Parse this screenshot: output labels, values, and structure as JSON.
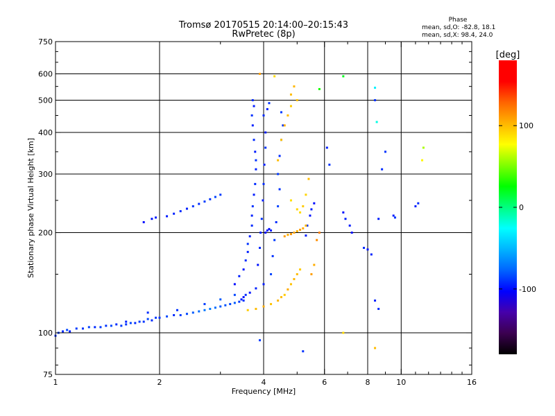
{
  "header": {
    "title_line1": "Tromsø 20170515 20:14:00–20:15:43",
    "title_line2": "RwPretec (8p)",
    "phase_title": "Phase",
    "phase_line_o": "mean, sd,O:  -82.8,  18.1",
    "phase_line_x": "mean, sd,X:  98.4,  24.0"
  },
  "chart_data": {
    "type": "scatter",
    "title": "Tromsø 20170515 20:14:00–20:15:43",
    "subtitle": "RwPretec (8p)",
    "xlabel": "Frequency [MHz]",
    "ylabel": "Stationary phase Virtual Height [km]",
    "xscale": "log",
    "yscale": "log",
    "xlim": [
      1,
      16
    ],
    "ylim": [
      75,
      750
    ],
    "x_ticks": [
      1,
      2,
      4,
      6,
      8,
      10,
      16
    ],
    "x_tick_labels": [
      "1",
      "2",
      "4",
      "6",
      "8",
      "10",
      "16"
    ],
    "y_ticks": [
      75,
      100,
      200,
      300,
      400,
      500,
      600,
      750
    ],
    "y_tick_labels": [
      "75",
      "100",
      "200",
      "300",
      "400",
      "500",
      "600",
      "750"
    ],
    "x_grid": [
      2,
      4,
      6,
      8,
      10
    ],
    "y_grid": [
      100,
      200,
      300,
      400,
      500,
      600
    ],
    "colorbar": {
      "label": "[deg]",
      "range": [
        -180,
        180
      ],
      "ticks": [
        -100,
        0,
        100
      ],
      "tick_labels": [
        "-100",
        "0",
        "100"
      ],
      "colors": [
        "#000000",
        "#3c0050",
        "#4600aa",
        "#0000ff",
        "#0064ff",
        "#00b4ff",
        "#00ffff",
        "#00ff80",
        "#00ff00",
        "#80ff00",
        "#ffff00",
        "#ffb400",
        "#ff6400",
        "#ff0000",
        "#ff0000"
      ]
    },
    "series": [
      {
        "name": "O",
        "points": [
          [
            1.0,
            98,
            -90
          ],
          [
            1.02,
            100,
            -88
          ],
          [
            1.05,
            101,
            -92
          ],
          [
            1.08,
            102,
            -85
          ],
          [
            1.1,
            101,
            -95
          ],
          [
            1.15,
            103,
            -88
          ],
          [
            1.2,
            103,
            -90
          ],
          [
            1.25,
            104,
            -86
          ],
          [
            1.3,
            104,
            -92
          ],
          [
            1.35,
            104,
            -88
          ],
          [
            1.4,
            105,
            -90
          ],
          [
            1.45,
            105,
            -85
          ],
          [
            1.5,
            106,
            -92
          ],
          [
            1.55,
            105,
            -88
          ],
          [
            1.6,
            106,
            -90
          ],
          [
            1.65,
            107,
            -86
          ],
          [
            1.7,
            107,
            -92
          ],
          [
            1.75,
            108,
            -88
          ],
          [
            1.8,
            108,
            -90
          ],
          [
            1.85,
            110,
            -85
          ],
          [
            1.9,
            109,
            -92
          ],
          [
            1.95,
            111,
            -88
          ],
          [
            2.0,
            111,
            -90
          ],
          [
            2.1,
            112,
            -84
          ],
          [
            2.2,
            113,
            -92
          ],
          [
            2.3,
            113,
            -88
          ],
          [
            2.4,
            114,
            -85
          ],
          [
            2.5,
            115,
            -80
          ],
          [
            2.6,
            116,
            -75
          ],
          [
            2.7,
            117,
            -72
          ],
          [
            2.8,
            118,
            -70
          ],
          [
            2.9,
            119,
            -75
          ],
          [
            3.0,
            120,
            -80
          ],
          [
            3.1,
            121,
            -82
          ],
          [
            3.2,
            122,
            -85
          ],
          [
            3.3,
            123,
            -80
          ],
          [
            3.4,
            124,
            -88
          ],
          [
            3.5,
            125,
            -90
          ],
          [
            1.6,
            108,
            -95
          ],
          [
            1.85,
            115,
            -92
          ],
          [
            2.25,
            117,
            -90
          ],
          [
            2.7,
            122,
            -88
          ],
          [
            3.0,
            126,
            -80
          ],
          [
            3.3,
            130,
            -85
          ],
          [
            1.8,
            215,
            -100
          ],
          [
            1.9,
            220,
            -98
          ],
          [
            1.95,
            222,
            -95
          ],
          [
            2.1,
            224,
            -96
          ],
          [
            2.2,
            228,
            -94
          ],
          [
            2.3,
            232,
            -92
          ],
          [
            2.4,
            236,
            -95
          ],
          [
            2.5,
            240,
            -90
          ],
          [
            2.6,
            244,
            -92
          ],
          [
            2.7,
            248,
            -88
          ],
          [
            2.8,
            252,
            -90
          ],
          [
            2.9,
            256,
            -86
          ],
          [
            3.0,
            260,
            -88
          ],
          [
            3.3,
            140,
            -100
          ],
          [
            3.4,
            148,
            -95
          ],
          [
            3.5,
            155,
            -98
          ],
          [
            3.55,
            165,
            -92
          ],
          [
            3.6,
            175,
            -95
          ],
          [
            3.6,
            185,
            -90
          ],
          [
            3.65,
            195,
            -96
          ],
          [
            3.7,
            210,
            -92
          ],
          [
            3.7,
            225,
            -95
          ],
          [
            3.72,
            240,
            -90
          ],
          [
            3.75,
            260,
            -96
          ],
          [
            3.78,
            280,
            -92
          ],
          [
            3.8,
            310,
            -95
          ],
          [
            3.8,
            330,
            -90
          ],
          [
            3.78,
            350,
            -96
          ],
          [
            3.75,
            380,
            -92
          ],
          [
            3.72,
            420,
            -95
          ],
          [
            3.7,
            450,
            -90
          ],
          [
            3.75,
            480,
            -96
          ],
          [
            3.72,
            500,
            -92
          ],
          [
            3.85,
            160,
            -98
          ],
          [
            3.9,
            180,
            -92
          ],
          [
            3.92,
            200,
            -95
          ],
          [
            3.95,
            220,
            -90
          ],
          [
            3.98,
            250,
            -96
          ],
          [
            4.0,
            280,
            -92
          ],
          [
            4.02,
            320,
            -95
          ],
          [
            4.05,
            360,
            -90
          ],
          [
            4.05,
            400,
            -96
          ],
          [
            4.0,
            450,
            -92
          ],
          [
            4.1,
            470,
            -95
          ],
          [
            4.15,
            490,
            -90
          ],
          [
            4.2,
            150,
            -85
          ],
          [
            4.25,
            170,
            -90
          ],
          [
            4.3,
            190,
            -88
          ],
          [
            4.35,
            215,
            -92
          ],
          [
            4.4,
            240,
            -86
          ],
          [
            4.45,
            270,
            -90
          ],
          [
            4.4,
            300,
            -88
          ],
          [
            4.45,
            340,
            -92
          ],
          [
            4.5,
            380,
            -86
          ],
          [
            4.55,
            420,
            -90
          ],
          [
            4.5,
            460,
            -88
          ],
          [
            4.05,
            200,
            -100
          ],
          [
            4.1,
            203,
            -98
          ],
          [
            4.15,
            205,
            -100
          ],
          [
            4.2,
            203,
            -96
          ],
          [
            3.5,
            128,
            -100
          ],
          [
            3.45,
            126,
            -95
          ],
          [
            3.55,
            130,
            -92
          ],
          [
            3.65,
            132,
            -98
          ],
          [
            3.8,
            136,
            -94
          ],
          [
            4.0,
            140,
            -96
          ],
          [
            5.6,
            245,
            -100
          ],
          [
            5.5,
            235,
            -95
          ],
          [
            5.45,
            225,
            -98
          ],
          [
            5.35,
            210,
            -92
          ],
          [
            5.3,
            196,
            -96
          ],
          [
            6.1,
            360,
            -95
          ],
          [
            6.2,
            320,
            -90
          ],
          [
            6.8,
            230,
            -98
          ],
          [
            6.9,
            220,
            -94
          ],
          [
            7.1,
            210,
            -96
          ],
          [
            7.2,
            200,
            -100
          ],
          [
            7.8,
            180,
            -92
          ],
          [
            8.0,
            178,
            -98
          ],
          [
            8.2,
            172,
            -94
          ],
          [
            8.4,
            500,
            -90
          ],
          [
            8.6,
            220,
            -95
          ],
          [
            8.8,
            310,
            -92
          ],
          [
            9.0,
            350,
            -90
          ],
          [
            9.5,
            225,
            -96
          ],
          [
            9.6,
            222,
            -90
          ],
          [
            11.0,
            240,
            -95
          ],
          [
            11.2,
            245,
            -92
          ],
          [
            8.4,
            125,
            -95
          ],
          [
            8.6,
            118,
            -92
          ],
          [
            5.2,
            88,
            -90
          ],
          [
            3.9,
            95,
            -88
          ]
        ]
      },
      {
        "name": "X",
        "points": [
          [
            3.6,
            117,
            95
          ],
          [
            3.8,
            118,
            100
          ],
          [
            4.0,
            120,
            105
          ],
          [
            4.2,
            122,
            98
          ],
          [
            4.4,
            125,
            102
          ],
          [
            4.5,
            128,
            100
          ],
          [
            4.6,
            130,
            95
          ],
          [
            4.7,
            135,
            105
          ],
          [
            4.8,
            140,
            98
          ],
          [
            4.9,
            145,
            102
          ],
          [
            5.0,
            150,
            100
          ],
          [
            5.1,
            155,
            95
          ],
          [
            4.4,
            330,
            100
          ],
          [
            4.5,
            380,
            98
          ],
          [
            4.6,
            420,
            105
          ],
          [
            4.7,
            450,
            100
          ],
          [
            4.8,
            480,
            95
          ],
          [
            4.8,
            520,
            100
          ],
          [
            4.9,
            550,
            102
          ],
          [
            5.0,
            500,
            98
          ],
          [
            4.6,
            195,
            110
          ],
          [
            4.7,
            197,
            105
          ],
          [
            4.8,
            198,
            112
          ],
          [
            4.9,
            200,
            108
          ],
          [
            5.0,
            202,
            104
          ],
          [
            5.1,
            204,
            110
          ],
          [
            5.2,
            206,
            106
          ],
          [
            5.3,
            210,
            102
          ],
          [
            5.2,
            240,
            95
          ],
          [
            5.3,
            260,
            92
          ],
          [
            5.4,
            290,
            100
          ],
          [
            4.8,
            250,
            88
          ],
          [
            5.0,
            235,
            92
          ],
          [
            5.1,
            230,
            90
          ],
          [
            5.5,
            150,
            110
          ],
          [
            5.6,
            160,
            105
          ],
          [
            5.7,
            190,
            115
          ],
          [
            5.8,
            200,
            120
          ],
          [
            3.9,
            600,
            110
          ],
          [
            4.3,
            590,
            90
          ],
          [
            6.8,
            590,
            20
          ],
          [
            8.4,
            545,
            -30
          ],
          [
            8.5,
            430,
            -20
          ],
          [
            11.5,
            330,
            80
          ],
          [
            11.6,
            360,
            60
          ],
          [
            6.8,
            100,
            90
          ],
          [
            8.4,
            90,
            100
          ],
          [
            5.8,
            540,
            30
          ]
        ]
      }
    ]
  }
}
